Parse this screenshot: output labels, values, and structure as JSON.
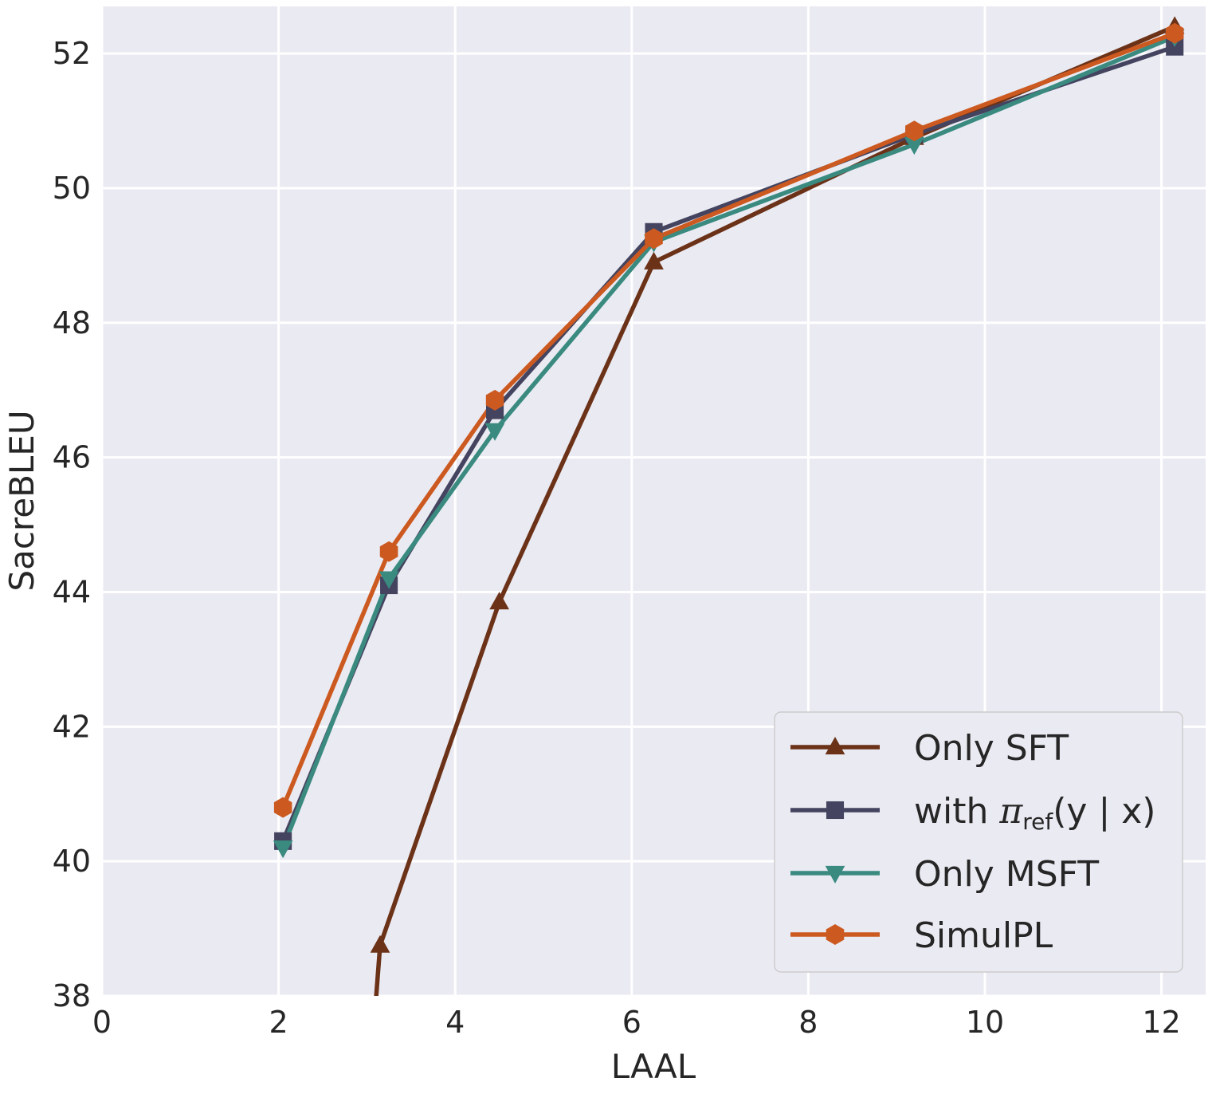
{
  "chart_data": {
    "type": "line",
    "title": "",
    "xlabel": "LAAL",
    "ylabel": "SacreBLEU",
    "xlim": [
      0,
      12.5
    ],
    "ylim": [
      38,
      52.7
    ],
    "xticks": [
      0,
      2,
      4,
      6,
      8,
      10,
      12
    ],
    "yticks": [
      38,
      40,
      42,
      44,
      46,
      48,
      50,
      52
    ],
    "grid": true,
    "legend_position": "bottom-right",
    "series": [
      {
        "name": "Only SFT",
        "color": "#6b3218",
        "marker": "triangle-up",
        "x": [
          3.1,
          3.15,
          4.5,
          6.25,
          9.2,
          12.15
        ],
        "y": [
          37.9,
          38.75,
          43.85,
          48.9,
          50.75,
          52.4
        ]
      },
      {
        "name": "with π_ref(y | x)",
        "legend_parts": {
          "prefix": "with ",
          "symbol": "π",
          "subscript": "ref",
          "suffix": "(y | x)"
        },
        "color": "#444460",
        "marker": "square",
        "x": [
          2.05,
          3.25,
          4.45,
          6.25,
          9.2,
          12.15
        ],
        "y": [
          40.3,
          44.1,
          46.7,
          49.35,
          50.8,
          52.1
        ]
      },
      {
        "name": "Only MSFT",
        "color": "#3a8a80",
        "marker": "triangle-down",
        "x": [
          2.05,
          3.25,
          4.45,
          6.25,
          9.2,
          12.15
        ],
        "y": [
          40.2,
          44.2,
          46.4,
          49.2,
          50.65,
          52.25
        ]
      },
      {
        "name": "SimulPL",
        "color": "#cc5a20",
        "marker": "hexagon",
        "x": [
          2.05,
          3.25,
          4.45,
          6.25,
          9.2,
          12.15
        ],
        "y": [
          40.8,
          44.6,
          46.85,
          49.25,
          50.85,
          52.3
        ]
      }
    ]
  }
}
